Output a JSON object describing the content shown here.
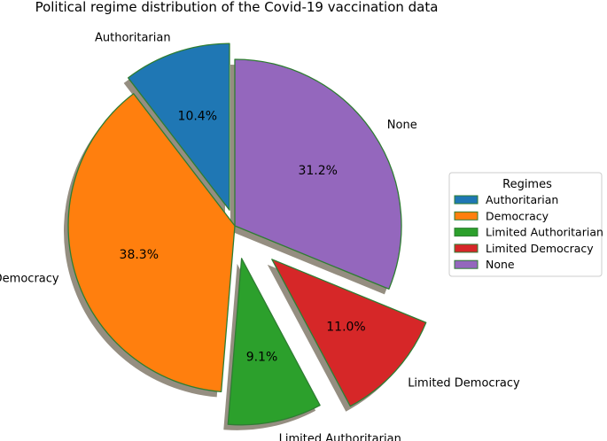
{
  "chart_data": {
    "type": "pie",
    "title": "Political regime distribution of the Covid-19 vaccination data",
    "slices": [
      {
        "label": "Authoritarian",
        "value": 10.4,
        "pct_label": "10.4%",
        "color": "#1f77b4",
        "explode": 0.1
      },
      {
        "label": "Democracy",
        "value": 38.3,
        "pct_label": "38.3%",
        "color": "#ff7f0e",
        "explode": 0.0
      },
      {
        "label": "Limited Authoritarian",
        "value": 9.1,
        "pct_label": "9.1%",
        "color": "#2ca02c",
        "explode": 0.2
      },
      {
        "label": "Limited Democracy",
        "value": 11.0,
        "pct_label": "11.0%",
        "color": "#d62728",
        "explode": 0.3
      },
      {
        "label": "None",
        "value": 31.2,
        "pct_label": "31.2%",
        "color": "#9467bd",
        "explode": 0.0
      }
    ],
    "start_angle_deg": 90,
    "edge_color": "#2e7d32",
    "shadow": true,
    "legend": {
      "title": "Regimes",
      "placement": "center-right",
      "entries": [
        "Authoritarian",
        "Democracy",
        "Limited Authoritarian",
        "Limited Democracy",
        "None"
      ]
    }
  }
}
